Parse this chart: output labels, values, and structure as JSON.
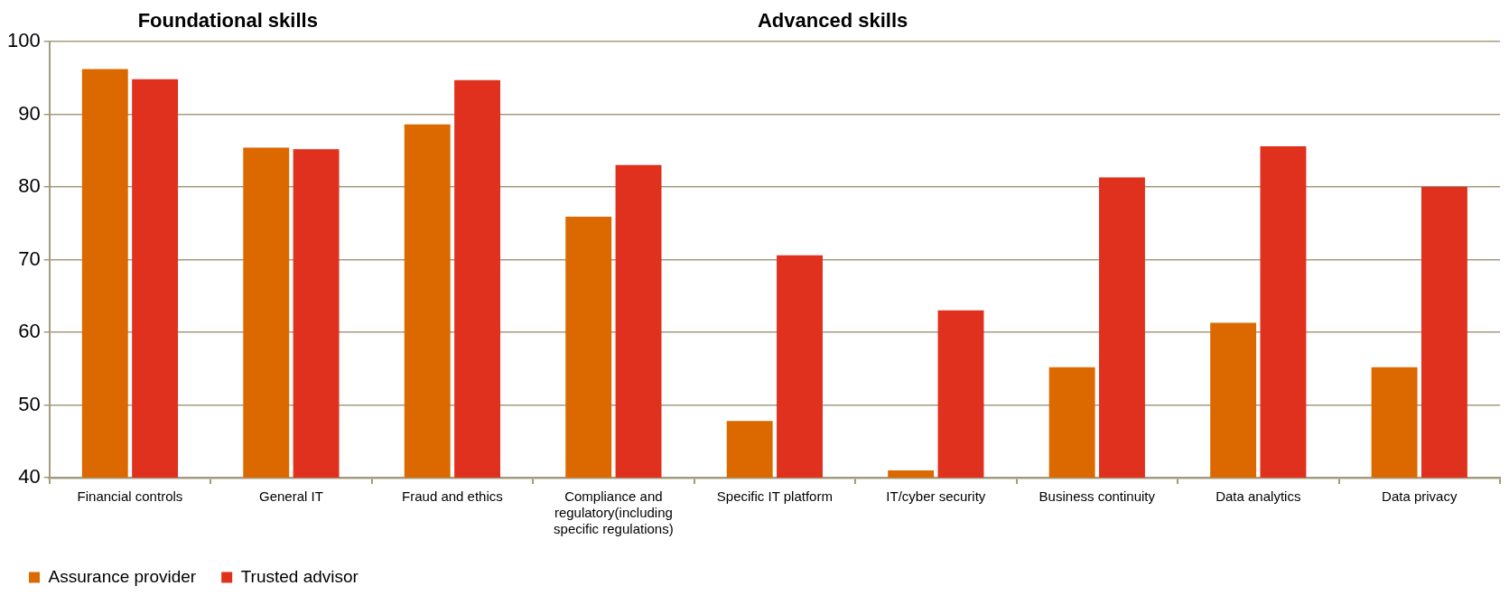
{
  "chart_data": {
    "type": "bar",
    "annotations": [
      "Foundational skills",
      "Advanced skills"
    ],
    "categories": [
      "Financial controls",
      "General IT",
      "Fraud and ethics",
      "Compliance and regulatory(including specific regulations)",
      "Specific IT platform",
      "IT/cyber security",
      "Business continuity",
      "Data analytics",
      "Data privacy"
    ],
    "series": [
      {
        "name": "Assurance provider",
        "color": "#dc6900",
        "values": [
          96.2,
          85.4,
          88.6,
          75.9,
          47.8,
          41.0,
          55.2,
          61.3,
          55.2
        ]
      },
      {
        "name": "Trusted advisor",
        "color": "#e0301e",
        "values": [
          94.8,
          85.2,
          94.7,
          83.0,
          70.6,
          63.0,
          81.3,
          85.6,
          80.0
        ]
      }
    ],
    "ylim": [
      40,
      100
    ],
    "yticks": [
      40,
      50,
      60,
      70,
      80,
      90,
      100
    ],
    "grid": "y",
    "legend": "bottom left"
  }
}
